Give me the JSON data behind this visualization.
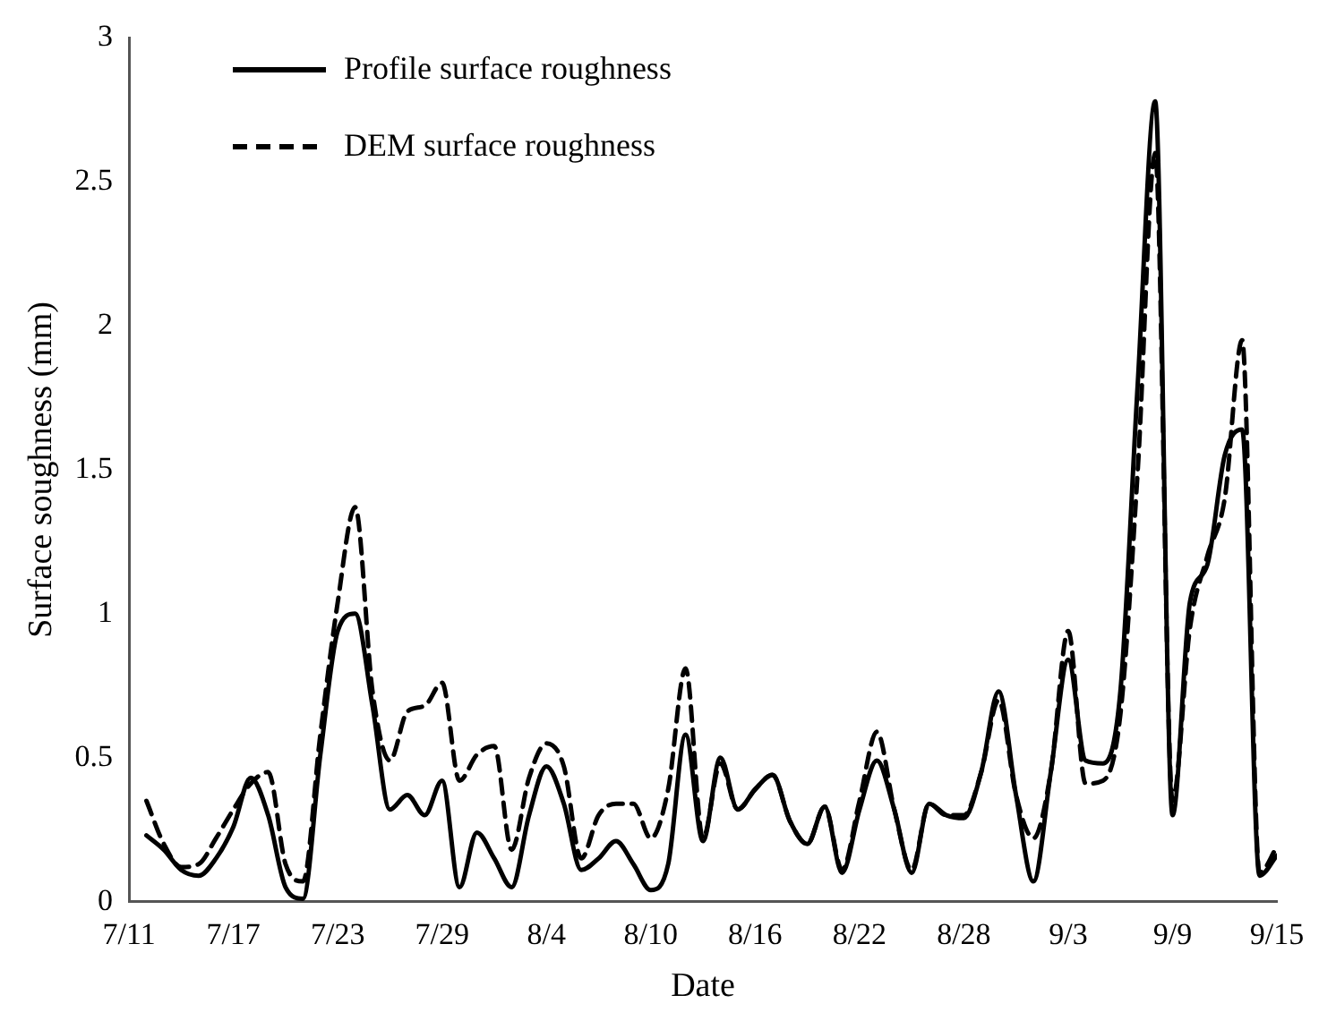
{
  "chart_data": {
    "type": "line",
    "xlabel": "Date",
    "ylabel": "Surface soughness (mm)",
    "x": [
      "--07-12",
      "--07-13",
      "--07-14",
      "--07-15",
      "--07-16",
      "--07-17",
      "--07-18",
      "--07-19",
      "--07-20",
      "--07-21",
      "--07-22",
      "--07-23",
      "--07-24",
      "--07-25",
      "--07-26",
      "--07-27",
      "--07-28",
      "--07-29",
      "--07-30",
      "--07-31",
      "--08-01",
      "--08-02",
      "--08-03",
      "--08-04",
      "--08-05",
      "--08-06",
      "--08-07",
      "--08-08",
      "--08-09",
      "--08-10",
      "--08-11",
      "--08-12",
      "--08-13",
      "--08-14",
      "--08-15",
      "--08-16",
      "--08-17",
      "--08-18",
      "--08-19",
      "--08-20",
      "--08-21",
      "--08-22",
      "--08-23",
      "--08-24",
      "--08-25",
      "--08-26",
      "--08-27",
      "--08-28",
      "--08-29",
      "--08-30",
      "--08-31",
      "--09-01",
      "--09-02",
      "--09-03",
      "--09-04",
      "--09-05",
      "--09-06",
      "--09-07",
      "--09-08",
      "--09-09",
      "--09-10",
      "--09-11",
      "--09-12",
      "--09-13",
      "--09-14",
      "--09-15"
    ],
    "series": [
      {
        "name": "Profile surface roughness",
        "color": "#000000",
        "line_style": "solid",
        "values": [
          0.23,
          0.18,
          0.11,
          0.09,
          0.15,
          0.26,
          0.43,
          0.3,
          0.05,
          0.01,
          0.51,
          0.94,
          1.0,
          0.68,
          0.32,
          0.37,
          0.3,
          0.42,
          0.05,
          0.24,
          0.15,
          0.05,
          0.3,
          0.47,
          0.34,
          0.11,
          0.15,
          0.21,
          0.13,
          0.04,
          0.13,
          0.58,
          0.21,
          0.5,
          0.32,
          0.39,
          0.44,
          0.28,
          0.2,
          0.33,
          0.1,
          0.32,
          0.49,
          0.32,
          0.1,
          0.34,
          0.3,
          0.29,
          0.45,
          0.73,
          0.37,
          0.07,
          0.45,
          0.84,
          0.49,
          0.48,
          0.73,
          1.8,
          2.78,
          0.3,
          1.04,
          1.17,
          1.55,
          1.64,
          0.09,
          0.16
        ]
      },
      {
        "name": "DEM surface roughness",
        "color": "#000000",
        "line_style": "dashed",
        "values": [
          0.35,
          0.2,
          0.12,
          0.13,
          0.22,
          0.32,
          0.41,
          0.45,
          0.13,
          0.07,
          0.58,
          1.04,
          1.37,
          0.73,
          0.49,
          0.66,
          0.68,
          0.76,
          0.42,
          0.51,
          0.54,
          0.18,
          0.43,
          0.55,
          0.47,
          0.15,
          0.3,
          0.34,
          0.34,
          0.22,
          0.39,
          0.81,
          0.22,
          0.48,
          0.32,
          0.39,
          0.44,
          0.28,
          0.2,
          0.33,
          0.11,
          0.35,
          0.59,
          0.32,
          0.11,
          0.34,
          0.3,
          0.3,
          0.45,
          0.7,
          0.37,
          0.22,
          0.45,
          0.94,
          0.41,
          0.42,
          0.65,
          1.5,
          2.6,
          0.35,
          0.95,
          1.2,
          1.4,
          1.95,
          0.1,
          0.19
        ]
      }
    ],
    "xlim": [
      "--07-11",
      "--09-15"
    ],
    "xticks": [
      {
        "value": "--07-11",
        "label": "7/11"
      },
      {
        "value": "--07-17",
        "label": "7/17"
      },
      {
        "value": "--07-23",
        "label": "7/23"
      },
      {
        "value": "--07-29",
        "label": "7/29"
      },
      {
        "value": "--08-04",
        "label": "8/4"
      },
      {
        "value": "--08-10",
        "label": "8/10"
      },
      {
        "value": "--08-16",
        "label": "8/16"
      },
      {
        "value": "--08-22",
        "label": "8/22"
      },
      {
        "value": "--08-28",
        "label": "8/28"
      },
      {
        "value": "--09-03",
        "label": "9/3"
      },
      {
        "value": "--09-09",
        "label": "9/9"
      },
      {
        "value": "--09-15",
        "label": "9/15"
      }
    ],
    "ylim": [
      0,
      3
    ],
    "yticks": [
      0,
      0.5,
      1,
      1.5,
      2,
      2.5,
      3
    ],
    "grid": false,
    "legend": "top left",
    "marker": "none"
  }
}
